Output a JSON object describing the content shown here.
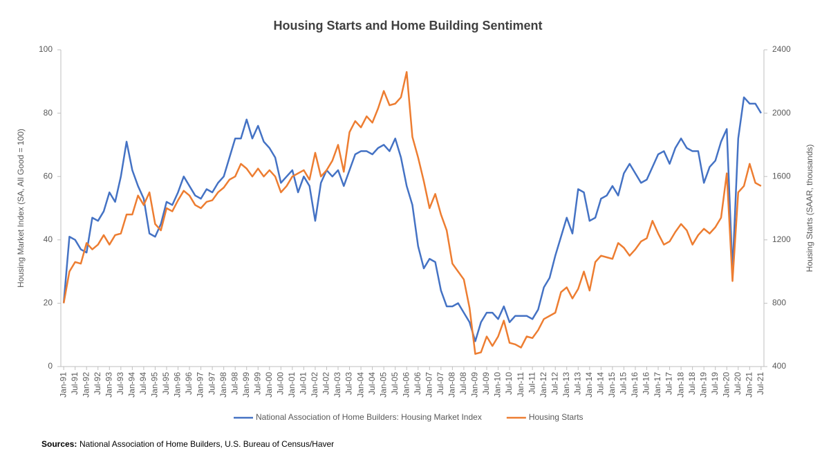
{
  "chart_data": {
    "type": "line",
    "title": "Housing Starts and Home Building Sentiment",
    "y_label": "Housing Market Index (SA, All Good = 100)",
    "y2_label": "Housing Starts (SAAR, thousands)",
    "source": {
      "label": "Sources:",
      "text": "National Association of Home Builders, U.S. Bureau of Census/Haver"
    },
    "categories": [
      "Jan-91",
      null,
      "Jul-91",
      null,
      "Jan-92",
      null,
      "Jul-92",
      null,
      "Jan-93",
      null,
      "Jul-93",
      null,
      "Jan-94",
      null,
      "Jul-94",
      null,
      "Jan-95",
      null,
      "Jul-95",
      null,
      "Jan-96",
      null,
      "Jul-96",
      null,
      "Jan-97",
      null,
      "Jul-97",
      null,
      "Jan-98",
      null,
      "Jul-98",
      null,
      "Jan-99",
      null,
      "Jul-99",
      null,
      "Jan-00",
      null,
      "Jul-00",
      null,
      "Jan-01",
      null,
      "Jul-01",
      null,
      "Jan-02",
      null,
      "Jul-02",
      null,
      "Jan-03",
      null,
      "Jul-03",
      null,
      "Jan-04",
      null,
      "Jul-04",
      null,
      "Jan-05",
      null,
      "Jul-05",
      null,
      "Jan-06",
      null,
      "Jul-06",
      null,
      "Jan-07",
      null,
      "Jul-07",
      null,
      "Jan-08",
      null,
      "Jul-08",
      null,
      "Jan-09",
      null,
      "Jul-09",
      null,
      "Jan-10",
      null,
      "Jul-10",
      null,
      "Jan-11",
      null,
      "Jul-11",
      null,
      "Jan-12",
      null,
      "Jul-12",
      null,
      "Jan-13",
      null,
      "Jul-13",
      null,
      "Jan-14",
      null,
      "Jul-14",
      null,
      "Jan-15",
      null,
      "Jul-15",
      null,
      "Jan-16",
      null,
      "Jul-16",
      null,
      "Jan-17",
      null,
      "Jul-17",
      null,
      "Jan-18",
      null,
      "Jul-18",
      null,
      "Jan-19",
      null,
      "Jul-19",
      null,
      "Jan-20",
      null,
      "Jul-20",
      null,
      "Jan-21",
      null,
      "Jul-21"
    ],
    "series": [
      {
        "name": "National Association of Home Builders: Housing Market Index",
        "color": "#4472c4",
        "axis": "y",
        "values": [
          20,
          41,
          40,
          37,
          36,
          47,
          46,
          49,
          55,
          52,
          60,
          71,
          62,
          57,
          53,
          42,
          41,
          45,
          52,
          51,
          55,
          60,
          57,
          54,
          53,
          56,
          55,
          58,
          60,
          66,
          72,
          72,
          78,
          72,
          76,
          71,
          69,
          66,
          58,
          60,
          62,
          55,
          60,
          57,
          46,
          58,
          62,
          60,
          62,
          57,
          62,
          67,
          68,
          68,
          67,
          69,
          70,
          68,
          72,
          66,
          57,
          51,
          38,
          31,
          34,
          33,
          24,
          19,
          19,
          20,
          17,
          14,
          8,
          14,
          17,
          17,
          15,
          19,
          14,
          16,
          16,
          16,
          15,
          18,
          25,
          28,
          35,
          41,
          47,
          42,
          56,
          55,
          46,
          47,
          53,
          54,
          57,
          54,
          61,
          64,
          61,
          58,
          59,
          63,
          67,
          68,
          64,
          69,
          72,
          69,
          68,
          68,
          58,
          63,
          65,
          71,
          75,
          30,
          72,
          85,
          83,
          83,
          80
        ]
      },
      {
        "name": "Housing Starts",
        "color": "#ed7d31",
        "axis": "y2",
        "values": [
          800,
          1000,
          1060,
          1050,
          1180,
          1140,
          1170,
          1230,
          1170,
          1230,
          1240,
          1360,
          1360,
          1480,
          1420,
          1500,
          1300,
          1260,
          1400,
          1380,
          1450,
          1510,
          1480,
          1420,
          1400,
          1440,
          1450,
          1500,
          1530,
          1580,
          1600,
          1680,
          1650,
          1600,
          1650,
          1600,
          1640,
          1600,
          1500,
          1540,
          1600,
          1620,
          1640,
          1580,
          1750,
          1600,
          1640,
          1700,
          1800,
          1630,
          1880,
          1950,
          1910,
          1980,
          1940,
          2030,
          2140,
          2050,
          2060,
          2100,
          2260,
          1850,
          1720,
          1570,
          1400,
          1490,
          1360,
          1260,
          1050,
          1000,
          950,
          770,
          480,
          490,
          590,
          530,
          590,
          690,
          550,
          540,
          520,
          590,
          580,
          630,
          700,
          720,
          740,
          870,
          900,
          830,
          890,
          1000,
          880,
          1060,
          1100,
          1090,
          1080,
          1180,
          1150,
          1100,
          1140,
          1190,
          1210,
          1320,
          1240,
          1170,
          1190,
          1250,
          1300,
          1260,
          1170,
          1230,
          1270,
          1240,
          1280,
          1340,
          1620,
          940,
          1500,
          1540,
          1680,
          1560,
          1540
        ]
      }
    ],
    "ylim": [
      0,
      100
    ],
    "yticks": [
      0,
      20,
      40,
      60,
      80,
      100
    ],
    "y2lim": [
      400,
      2400
    ],
    "y2ticks": [
      400,
      800,
      1200,
      1600,
      2000,
      2400
    ],
    "grid": false,
    "legend": "bottom"
  }
}
